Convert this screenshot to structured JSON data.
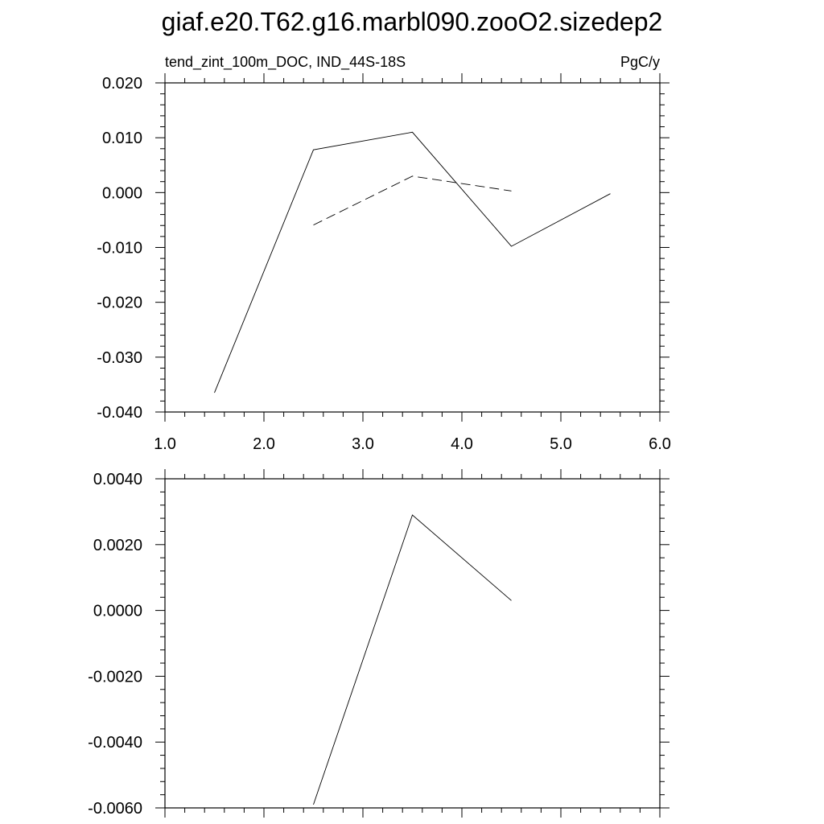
{
  "figure": {
    "title": "giaf.e20.T62.g16.marbl090.zooO2.sizedep2"
  },
  "chart_data": [
    {
      "type": "line",
      "subtitle_left": "tend_zint_100m_DOC, IND_44S-18S",
      "subtitle_right": "PgC/y",
      "xlim": [
        1.0,
        6.0
      ],
      "ylim": [
        -0.04,
        0.02
      ],
      "x_ticks": [
        "1.0",
        "2.0",
        "3.0",
        "4.0",
        "5.0",
        "6.0"
      ],
      "y_ticks": [
        "-0.040",
        "-0.030",
        "-0.020",
        "-0.010",
        "0.000",
        "0.010",
        "0.020"
      ],
      "grid": false,
      "series": [
        {
          "style": "solid",
          "x": [
            1.5,
            2.5,
            3.5,
            4.5,
            5.5
          ],
          "y": [
            -0.0365,
            0.0078,
            0.011,
            -0.0098,
            -0.0002
          ]
        },
        {
          "style": "dashed",
          "x": [
            2.5,
            3.5,
            4.5
          ],
          "y": [
            -0.0059,
            0.003,
            0.0003
          ]
        }
      ]
    },
    {
      "type": "line",
      "xlim": [
        1.0,
        6.0
      ],
      "ylim": [
        -0.006,
        0.004
      ],
      "y_ticks": [
        "-0.0060",
        "-0.0040",
        "-0.0020",
        "0.0000",
        "0.0020",
        "0.0040"
      ],
      "grid": false,
      "series": [
        {
          "style": "solid",
          "x": [
            2.5,
            3.5,
            4.5
          ],
          "y": [
            -0.0059,
            0.0029,
            0.0003
          ]
        }
      ]
    }
  ]
}
